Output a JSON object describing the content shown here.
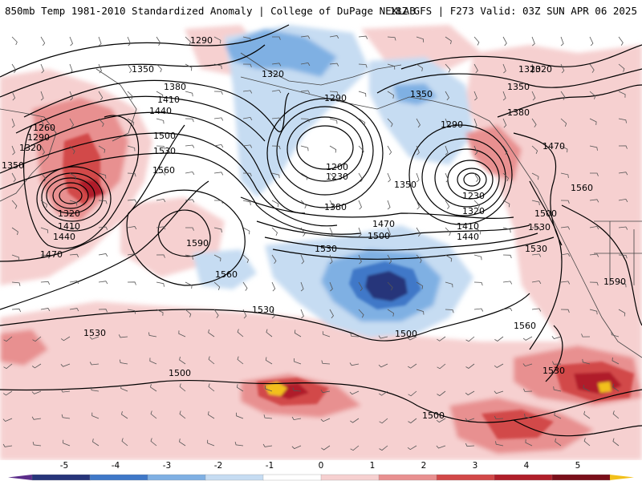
{
  "header": {
    "title_left": "850mb Temp 1981-2010 Standardized Anomaly | College of DuPage NEXLAB",
    "title_right": "18Z GFS | F273 Valid: 03Z SUN APR 06 2025"
  },
  "colorbar": {
    "ticks": [
      "-5",
      "-4",
      "-3",
      "-2",
      "-1",
      "0",
      "1",
      "2",
      "3",
      "4",
      "5"
    ],
    "colors": [
      "#5b2d8a",
      "#27357a",
      "#3f78c8",
      "#7fb0e3",
      "#c6dcf2",
      "#ffffff",
      "#f6d0d0",
      "#e89090",
      "#d24848",
      "#b01f2a",
      "#7a0f1a",
      "#f2c01a"
    ]
  },
  "contour_labels": [
    {
      "text": "1290"
    },
    {
      "text": "1350"
    },
    {
      "text": "1380"
    },
    {
      "text": "1410"
    },
    {
      "text": "1440"
    },
    {
      "text": "1260"
    },
    {
      "text": "1290"
    },
    {
      "text": "1320"
    },
    {
      "text": "1350"
    },
    {
      "text": "1500"
    },
    {
      "text": "1530"
    },
    {
      "text": "1560"
    },
    {
      "text": "1320"
    },
    {
      "text": "1410"
    },
    {
      "text": "1440"
    },
    {
      "text": "1470"
    },
    {
      "text": "1320"
    },
    {
      "text": "1290"
    },
    {
      "text": "1350"
    },
    {
      "text": "1320"
    },
    {
      "text": "1290"
    },
    {
      "text": "1200"
    },
    {
      "text": "1230"
    },
    {
      "text": "1350"
    },
    {
      "text": "1230"
    },
    {
      "text": "1320"
    },
    {
      "text": "1380"
    },
    {
      "text": "1470"
    },
    {
      "text": "1500"
    },
    {
      "text": "1410"
    },
    {
      "text": "1440"
    },
    {
      "text": "1530"
    },
    {
      "text": "1590"
    },
    {
      "text": "1560"
    },
    {
      "text": "1530"
    },
    {
      "text": "1530"
    },
    {
      "text": "1530"
    },
    {
      "text": "1500"
    },
    {
      "text": "1320"
    },
    {
      "text": "1350"
    },
    {
      "text": "1380"
    },
    {
      "text": "1470"
    },
    {
      "text": "1560"
    },
    {
      "text": "1500"
    },
    {
      "text": "1530"
    },
    {
      "text": "1590"
    },
    {
      "text": "1560"
    },
    {
      "text": "1530"
    },
    {
      "text": "1500"
    },
    {
      "text": "1500"
    }
  ]
}
